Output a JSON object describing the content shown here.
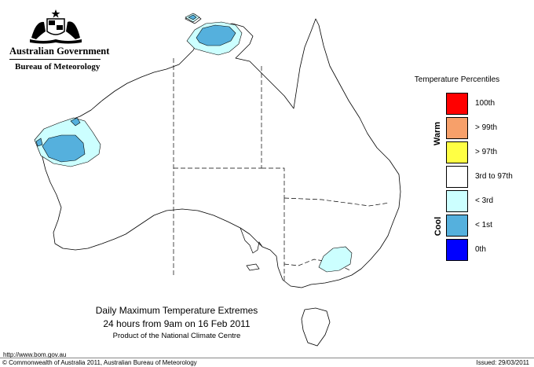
{
  "header": {
    "government": "Australian Government",
    "agency": "Bureau of Meteorology"
  },
  "map": {
    "title_line1": "Daily Maximum Temperature Extremes",
    "title_line2": "24 hours from 9am on 16 Feb 2011",
    "title_line3": "Product of the National Climate Centre",
    "regions_shown": [
      "< 3rd",
      "< 1st"
    ]
  },
  "legend": {
    "title": "Temperature Percentiles",
    "warm_label": "Warm",
    "cool_label": "Cool",
    "items": [
      {
        "label": "100th",
        "color": "#ff0000"
      },
      {
        "label": "> 99th",
        "color": "#f7a06a"
      },
      {
        "label": "> 97th",
        "color": "#ffff44"
      },
      {
        "label": "3rd to 97th",
        "color": "#ffffff"
      },
      {
        "label": "< 3rd",
        "color": "#ccffff"
      },
      {
        "label": "< 1st",
        "color": "#55b0dd"
      },
      {
        "label": "0th",
        "color": "#0000ff"
      }
    ]
  },
  "footer": {
    "url": "http://www.bom.gov.au",
    "copyright": "© Commonwealth of Australia 2011, Australian Bureau of Meteorology",
    "issued": "Issued: 29/03/2011"
  }
}
